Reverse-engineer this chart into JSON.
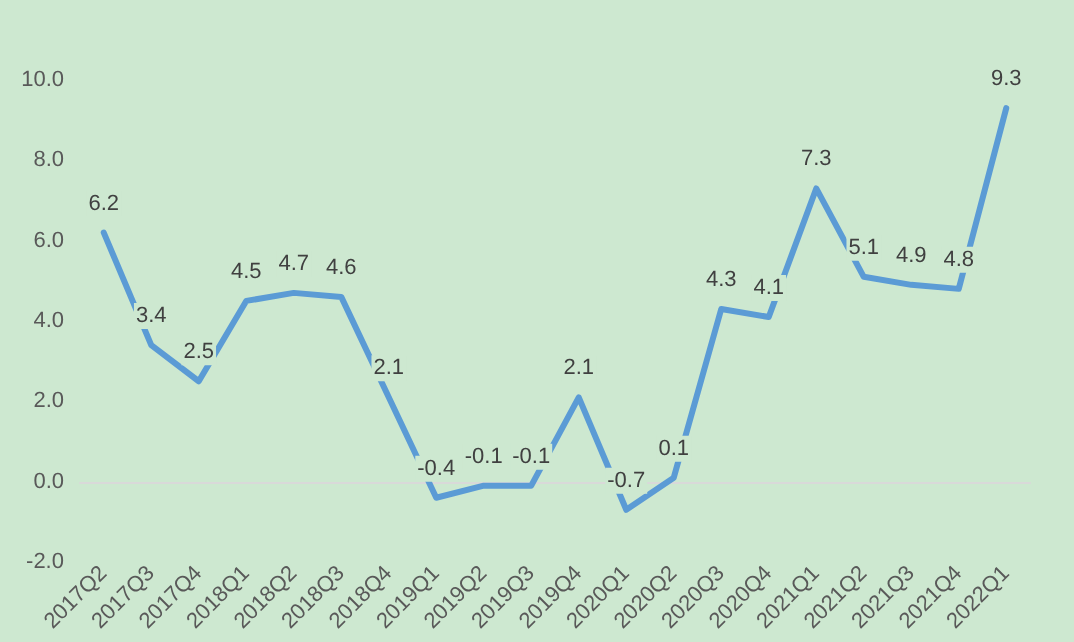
{
  "chart_data": {
    "type": "line",
    "categories": [
      "2017Q2",
      "2017Q3",
      "2017Q4",
      "2018Q1",
      "2018Q2",
      "2018Q3",
      "2018Q4",
      "2019Q1",
      "2019Q2",
      "2019Q3",
      "2019Q4",
      "2020Q1",
      "2020Q2",
      "2020Q3",
      "2020Q4",
      "2021Q1",
      "2021Q2",
      "2021Q3",
      "2021Q4",
      "2022Q1"
    ],
    "series": [
      {
        "color": "#5b9bd5",
        "values": [
          6.2,
          3.4,
          2.5,
          4.5,
          4.7,
          4.6,
          2.1,
          -0.4,
          -0.1,
          -0.1,
          2.1,
          -0.7,
          0.1,
          4.3,
          4.1,
          7.3,
          5.1,
          4.9,
          4.8,
          9.3
        ]
      }
    ],
    "ylim": [
      -2,
      10
    ],
    "yticks": [
      {
        "value": -2,
        "label": "-2.0"
      },
      {
        "value": 0,
        "label": "0.0"
      },
      {
        "value": 2,
        "label": "2.0"
      },
      {
        "value": 4,
        "label": "4.0"
      },
      {
        "value": 6,
        "label": "6.0"
      },
      {
        "value": 8,
        "label": "8.0"
      },
      {
        "value": 10,
        "label": "10.0"
      }
    ],
    "data_labels": true,
    "marker": "none",
    "line_style": "solid"
  }
}
